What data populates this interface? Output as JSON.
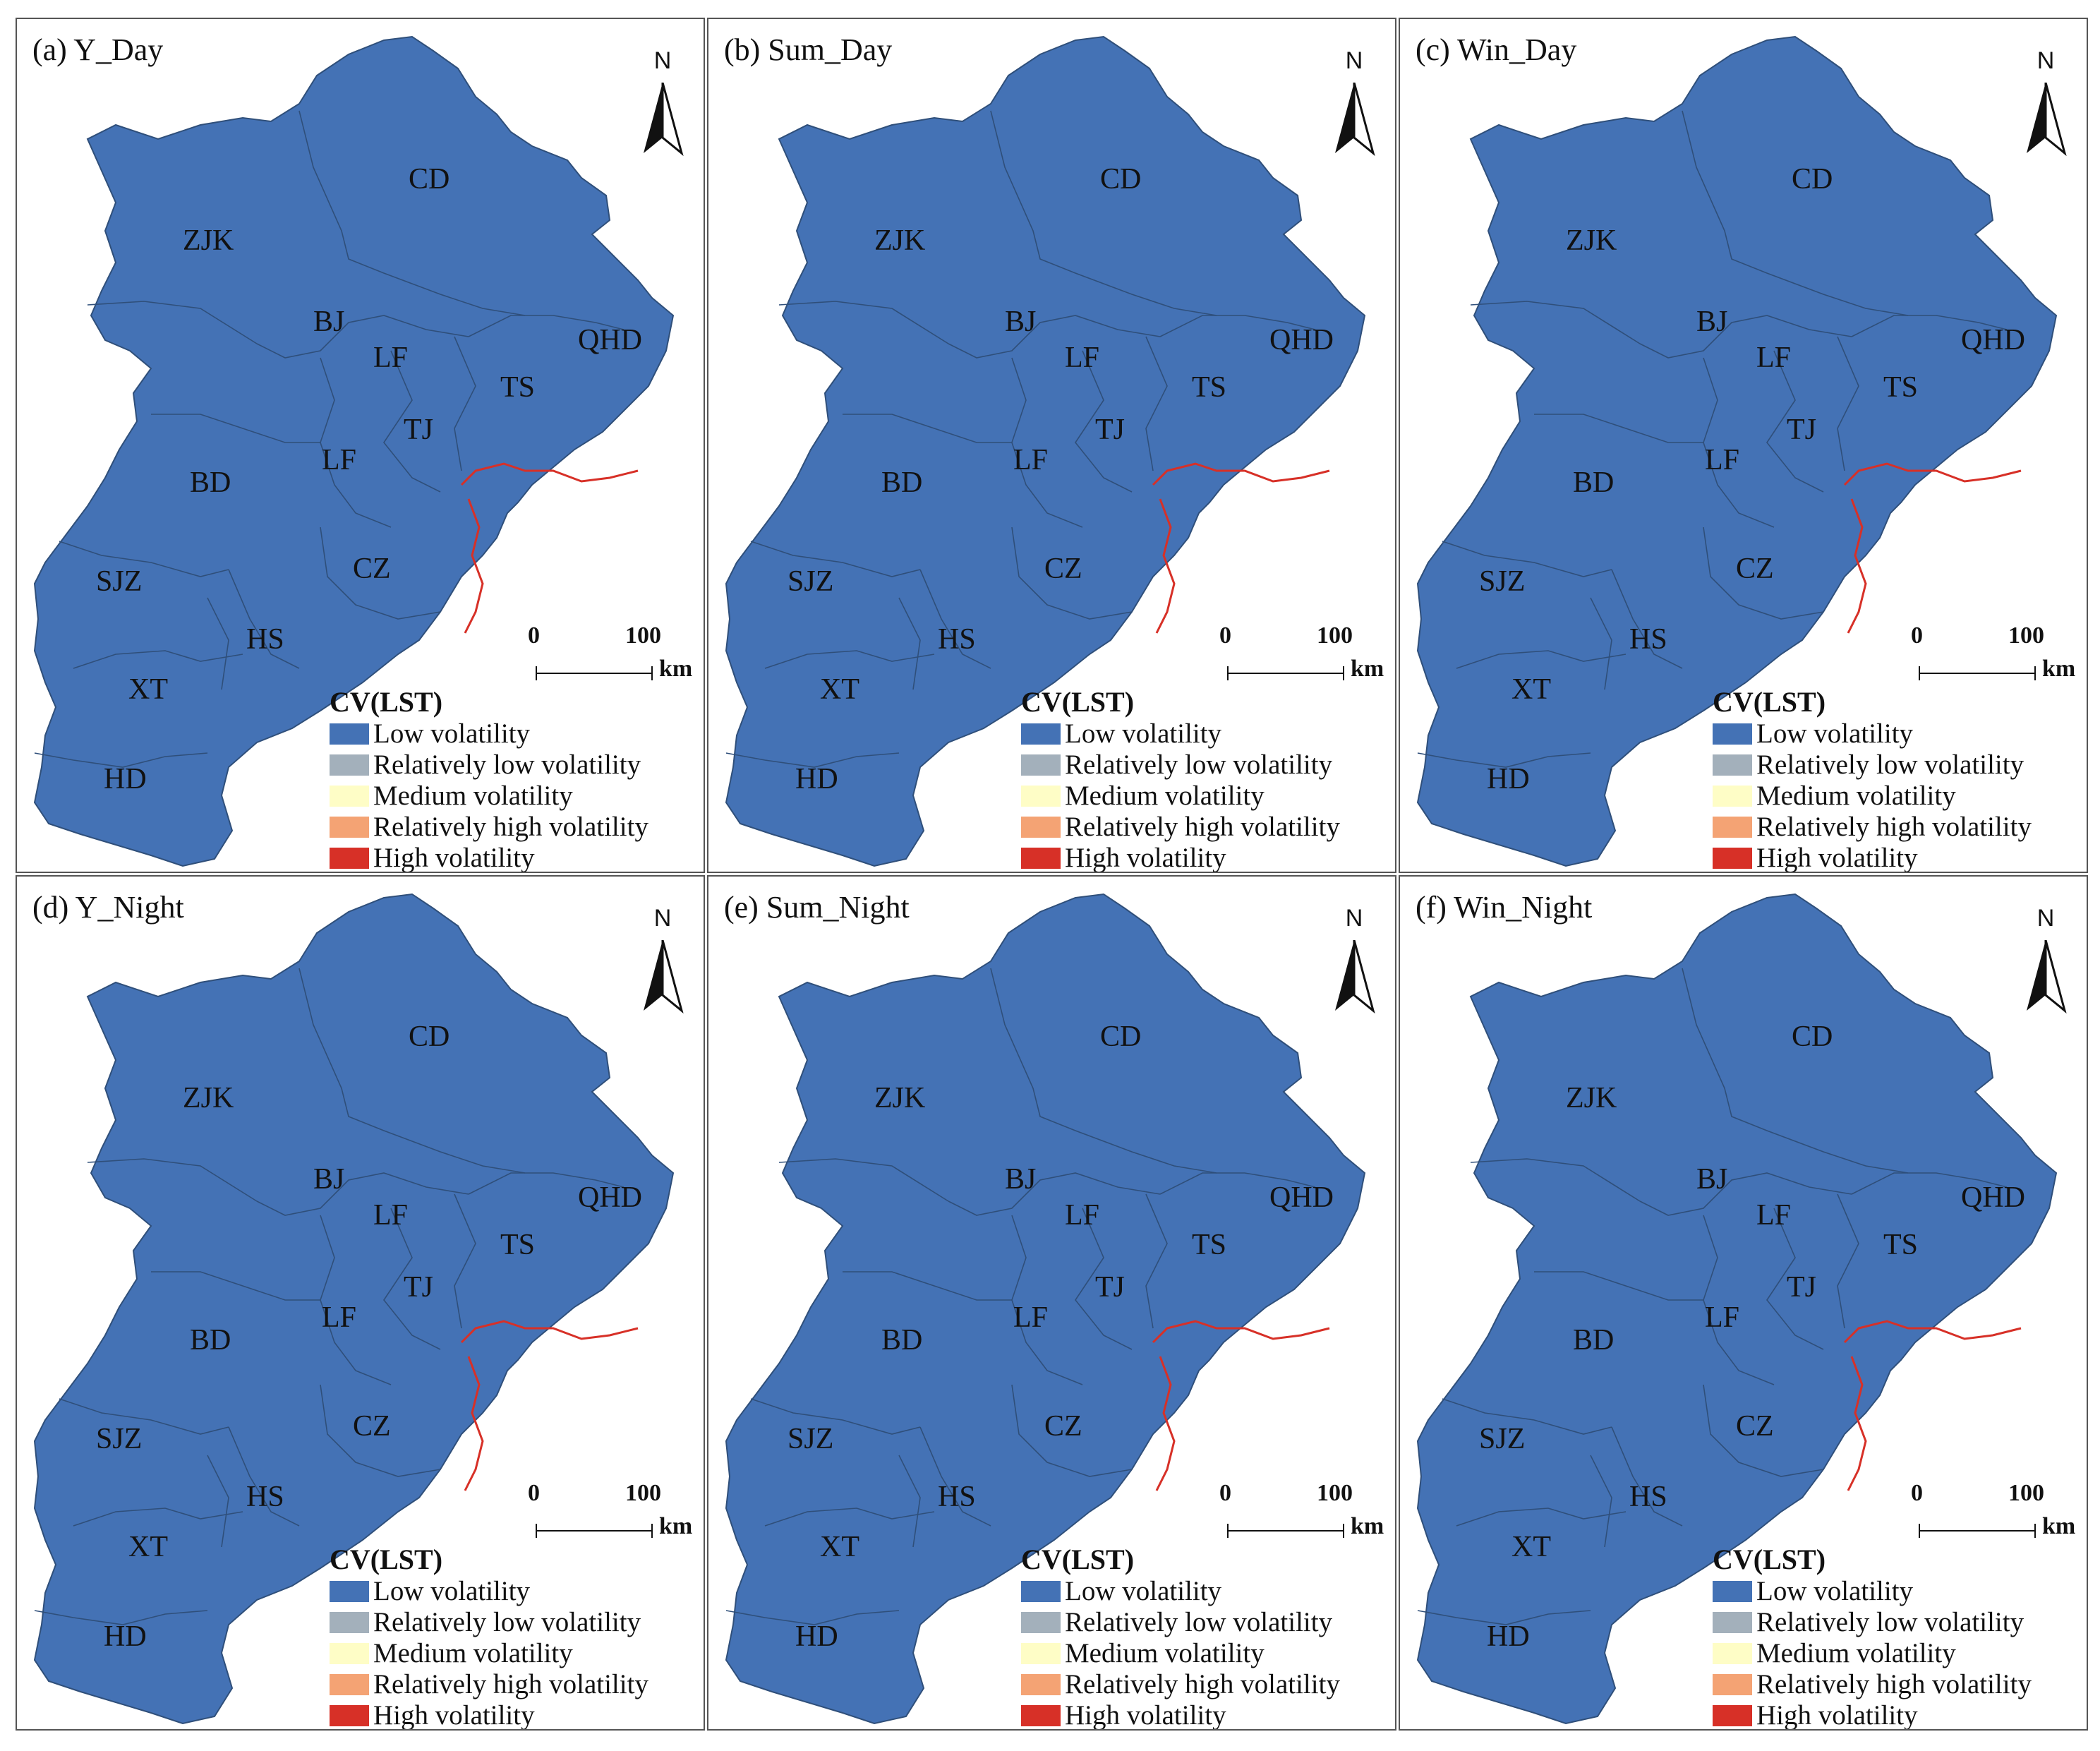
{
  "panels": [
    {
      "title": "(a) Y_Day"
    },
    {
      "title": "(b) Sum_Day"
    },
    {
      "title": "(c) Win_Day"
    },
    {
      "title": "(d) Y_Night"
    },
    {
      "title": "(e) Sum_Night"
    },
    {
      "title": "(f) Win_Night"
    }
  ],
  "north_label": "N",
  "scale_bar": {
    "start": "0",
    "end": "100",
    "unit": "km"
  },
  "legend": {
    "title": "CV(LST)",
    "items": [
      {
        "label": "Low volatility",
        "color": "#4472b5"
      },
      {
        "label": "Relatively low volatility",
        "color": "#a3b0bb"
      },
      {
        "label": "Medium volatility",
        "color": "#fefdc6"
      },
      {
        "label": "Relatively high volatility",
        "color": "#f4a374"
      },
      {
        "label": "High volatility",
        "color": "#d73027"
      }
    ]
  },
  "map_style": {
    "region_fill": "#4472b5",
    "boundary_color": "#2f4f7a",
    "sea_color": "#ffffff"
  },
  "regions": [
    {
      "code": "CD"
    },
    {
      "code": "ZJK"
    },
    {
      "code": "BJ"
    },
    {
      "code": "LF"
    },
    {
      "code": "QHD"
    },
    {
      "code": "TS"
    },
    {
      "code": "TJ"
    },
    {
      "code": "LF"
    },
    {
      "code": "BD"
    },
    {
      "code": "CZ"
    },
    {
      "code": "SJZ"
    },
    {
      "code": "HS"
    },
    {
      "code": "XT"
    },
    {
      "code": "HD"
    }
  ]
}
